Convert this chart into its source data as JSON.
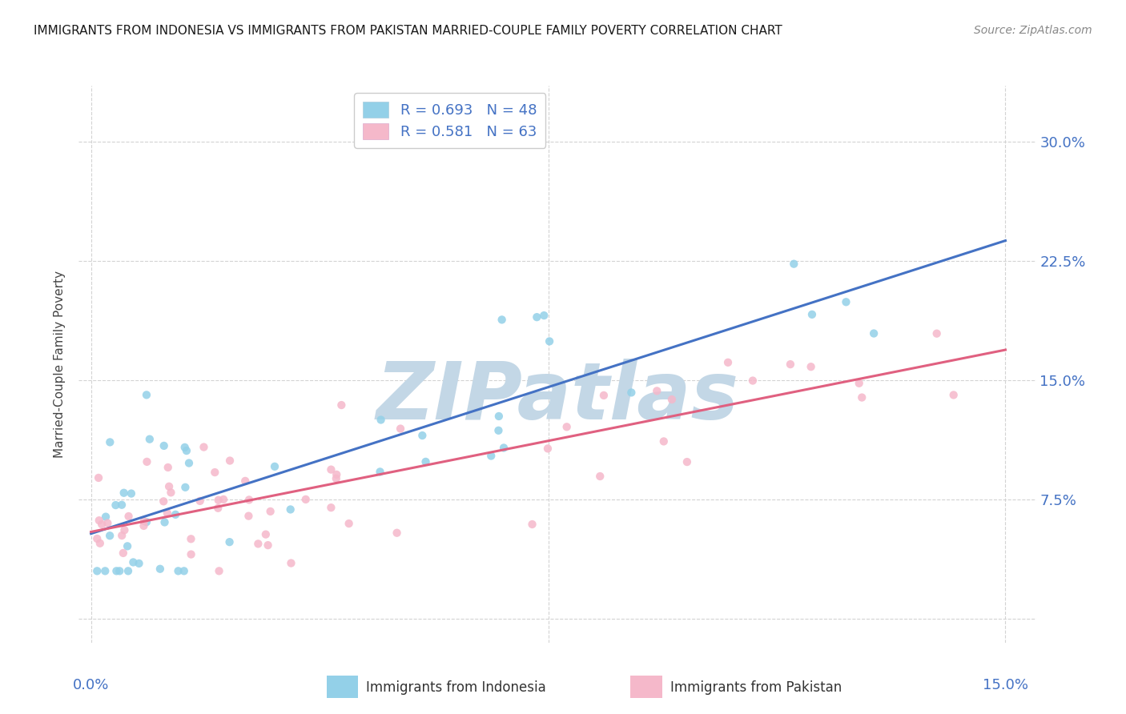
{
  "title": "IMMIGRANTS FROM INDONESIA VS IMMIGRANTS FROM PAKISTAN MARRIED-COUPLE FAMILY POVERTY CORRELATION CHART",
  "source": "Source: ZipAtlas.com",
  "ylabel": "Married-Couple Family Poverty",
  "yticks": [
    0.0,
    0.075,
    0.15,
    0.225,
    0.3
  ],
  "ytick_labels": [
    "",
    "7.5%",
    "15.0%",
    "22.5%",
    "30.0%"
  ],
  "xticks": [
    0.0,
    0.075,
    0.15
  ],
  "xlim": [
    -0.002,
    0.155
  ],
  "ylim": [
    -0.015,
    0.335
  ],
  "R_indonesia": 0.693,
  "N_indonesia": 48,
  "R_pakistan": 0.581,
  "N_pakistan": 63,
  "color_indonesia": "#93d0e8",
  "color_pakistan": "#f5b8ca",
  "line_color_indonesia": "#4472c4",
  "line_color_pakistan": "#e06080",
  "watermark": "ZIPatlas",
  "watermark_color": [
    0.765,
    0.843,
    0.902
  ],
  "legend_label_indonesia": "Immigrants from Indonesia",
  "legend_label_pakistan": "Immigrants from Pakistan",
  "background_color": "#ffffff",
  "grid_color": "#d3d3d3",
  "title_fontsize": 11,
  "axis_label_color": "#4472c4",
  "seed": 123
}
